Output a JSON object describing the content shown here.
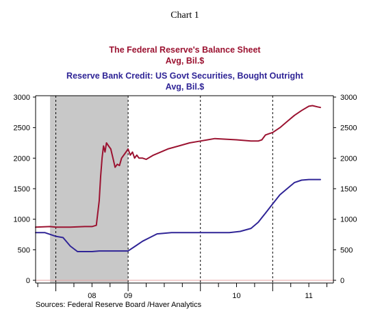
{
  "chart_number": "Chart 1",
  "colors": {
    "maroon": "#9b1230",
    "navy": "#2f2496",
    "recession": "#c8c8c8",
    "axis": "#000000",
    "baseline": "#e6a2a2"
  },
  "chart_data": {
    "type": "line",
    "titles": [
      {
        "text": "The Federal Reserve's Balance Sheet",
        "color": "#9b1230"
      },
      {
        "text": "Avg, Bil.$",
        "color": "#9b1230"
      },
      {
        "text": "Reserve Bank Credit: US Govt Securities, Bought Outright",
        "color": "#2f2496"
      },
      {
        "text": "Avg, Bil.$",
        "color": "#2f2496"
      }
    ],
    "ylim": [
      0,
      3000
    ],
    "yticks": [
      "0",
      "500",
      "1000",
      "1500",
      "2000",
      "2500",
      "3000"
    ],
    "xlim": [
      2007.72,
      2011.84
    ],
    "year_boundaries": [
      2008.0,
      2009.0,
      2010.0,
      2011.0
    ],
    "x_tick_labels": [
      "08",
      "09",
      "10",
      "11"
    ],
    "x_tick_label_positions": [
      2008.5,
      2009.0,
      2010.5,
      2011.5
    ],
    "month_ticks": [
      2007.75,
      2008.25,
      2008.5,
      2008.75,
      2009.25,
      2009.5,
      2009.75,
      2010.25,
      2010.5,
      2010.75,
      2011.25,
      2011.5,
      2011.75
    ],
    "recession_shade": [
      2007.92,
      2009.0
    ],
    "grid": "dashed vertical lines at year boundaries",
    "series": [
      {
        "name": "The Federal Reserve's Balance Sheet",
        "color": "#9b1230",
        "x": [
          2007.72,
          2007.92,
          2008.0,
          2008.2,
          2008.4,
          2008.42,
          2008.5,
          2008.56,
          2008.6,
          2008.62,
          2008.64,
          2008.66,
          2008.68,
          2008.7,
          2008.73,
          2008.76,
          2008.79,
          2008.82,
          2008.85,
          2008.88,
          2008.91,
          2008.94,
          2008.97,
          2009.0,
          2009.03,
          2009.06,
          2009.09,
          2009.12,
          2009.15,
          2009.2,
          2009.25,
          2009.35,
          2009.45,
          2009.55,
          2009.7,
          2009.85,
          2010.0,
          2010.1,
          2010.2,
          2010.5,
          2010.7,
          2010.8,
          2010.85,
          2010.9,
          2010.95,
          2011.0,
          2011.1,
          2011.2,
          2011.3,
          2011.4,
          2011.5,
          2011.55,
          2011.62,
          2011.66
        ],
        "values": [
          870,
          880,
          870,
          870,
          880,
          880,
          880,
          900,
          1300,
          1700,
          2000,
          2200,
          2100,
          2250,
          2200,
          2150,
          2000,
          1850,
          1900,
          1880,
          2000,
          2050,
          2100,
          2150,
          2050,
          2100,
          2000,
          2050,
          2000,
          2000,
          1980,
          2050,
          2100,
          2150,
          2200,
          2250,
          2280,
          2300,
          2320,
          2300,
          2280,
          2280,
          2300,
          2380,
          2400,
          2420,
          2500,
          2600,
          2700,
          2780,
          2850,
          2860,
          2840,
          2830
        ]
      },
      {
        "name": "Reserve Bank Credit: US Govt Securities, Bought Outright",
        "color": "#2f2496",
        "x": [
          2007.72,
          2007.85,
          2008.0,
          2008.1,
          2008.2,
          2008.3,
          2008.4,
          2008.5,
          2008.6,
          2008.7,
          2008.8,
          2008.9,
          2009.0,
          2009.1,
          2009.2,
          2009.3,
          2009.4,
          2009.6,
          2009.8,
          2010.0,
          2010.1,
          2010.2,
          2010.4,
          2010.55,
          2010.7,
          2010.8,
          2010.9,
          2011.0,
          2011.1,
          2011.2,
          2011.3,
          2011.4,
          2011.5,
          2011.55,
          2011.66
        ],
        "values": [
          780,
          780,
          720,
          700,
          560,
          470,
          470,
          470,
          480,
          480,
          480,
          480,
          480,
          560,
          640,
          700,
          760,
          780,
          780,
          780,
          780,
          780,
          780,
          800,
          850,
          950,
          1100,
          1250,
          1400,
          1500,
          1600,
          1640,
          1650,
          1650,
          1650
        ]
      }
    ],
    "source": "Sources:  Federal Reserve Board /Haver Analytics"
  }
}
